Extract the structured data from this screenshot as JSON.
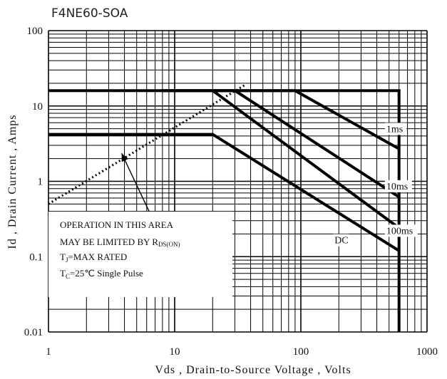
{
  "chart_data": {
    "type": "line",
    "title": "F4NE60-SOA",
    "xlabel": "Vds , Drain-to-Source Voltage , Volts",
    "ylabel": "Id , Drain Current , Amps",
    "xscale": "log",
    "yscale": "log",
    "xlim": [
      1,
      1000
    ],
    "ylim": [
      0.01,
      100
    ],
    "grid": true,
    "x_tick_labels": [
      "1",
      "10",
      "100",
      "1000"
    ],
    "y_tick_labels": [
      "100",
      "10",
      "1",
      "0.1",
      "0.01"
    ],
    "series": [
      {
        "name": "1ms",
        "x": [
          7.9,
          90,
          600
        ],
        "y": [
          16,
          16,
          2.7
        ]
      },
      {
        "name": "10ms",
        "x": [
          7.9,
          30,
          600
        ],
        "y": [
          16,
          16,
          0.62
        ]
      },
      {
        "name": "100ms",
        "x": [
          20,
          600
        ],
        "y": [
          16,
          0.24
        ]
      },
      {
        "name": "DC",
        "x": [
          1,
          20,
          600
        ],
        "y": [
          4.2,
          4.2,
          0.12
        ]
      },
      {
        "x": [
          1,
          600,
          600
        ],
        "y": [
          16,
          16,
          0.01
        ]
      },
      {
        "x": [
          1,
          36
        ],
        "y": [
          0.5,
          19
        ]
      }
    ],
    "annotations": {
      "line1": "OPERATION IN THIS AREA",
      "line2_main": "MAY BE LIMITED BY R",
      "line2_sub": "DS(ON)",
      "line3_prefix": "T",
      "line3_sub": "J",
      "line3_rest": "=MAX RATED",
      "line4_prefix": "T",
      "line4_sub": "C",
      "line4_rest": "=25℃  Single Pulse"
    }
  }
}
